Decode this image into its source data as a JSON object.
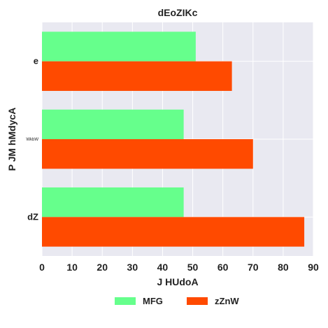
{
  "chart_data": {
    "type": "bar",
    "orientation": "horizontal",
    "title": "dEoZIKc",
    "xlabel": "J HUdoA",
    "ylabel": "P  JM  hMdycA",
    "categories": [
      "e",
      "WkbW",
      "dZ"
    ],
    "series": [
      {
        "name": "MFG",
        "values": [
          51,
          47,
          47
        ],
        "color": "#66ff8c"
      },
      {
        "name": "zZnW",
        "values": [
          63,
          70,
          87
        ],
        "color": "#ff4a00"
      }
    ],
    "xlim": [
      0,
      90
    ],
    "xticks": [
      0,
      10,
      20,
      30,
      40,
      50,
      60,
      70,
      80,
      90
    ],
    "grid": true,
    "legend_position": "bottom-center",
    "background": "#e9e9f1"
  }
}
